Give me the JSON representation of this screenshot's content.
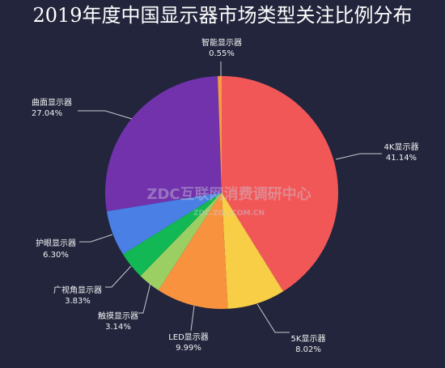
{
  "watermark": {
    "main": "ZDC互联网消费调研中心",
    "sub": "ZDC.ZOL.COM.CN"
  },
  "chart_data": {
    "type": "pie",
    "title": "2019年度中国显示器市场类型关注比例分布",
    "slices": [
      {
        "label": "4K显示器",
        "value": 41.14,
        "value_label": "41.14%",
        "color": "#f25757"
      },
      {
        "label": "5K显示器",
        "value": 8.02,
        "value_label": "8.02%",
        "color": "#f7ce46"
      },
      {
        "label": "LED显示器",
        "value": 9.99,
        "value_label": "9.99%",
        "color": "#f8923f"
      },
      {
        "label": "触摸显示器",
        "value": 3.14,
        "value_label": "3.14%",
        "color": "#9ccf63"
      },
      {
        "label": "广视角显示器",
        "value": 3.83,
        "value_label": "3.83%",
        "color": "#12b854"
      },
      {
        "label": "护眼显示器",
        "value": 6.3,
        "value_label": "6.30%",
        "color": "#4a7fe6"
      },
      {
        "label": "曲面显示器",
        "value": 27.04,
        "value_label": "27.04%",
        "color": "#7132ab"
      },
      {
        "label": "智能显示器",
        "value": 0.55,
        "value_label": "0.55%",
        "color": "#f59b42"
      }
    ]
  }
}
